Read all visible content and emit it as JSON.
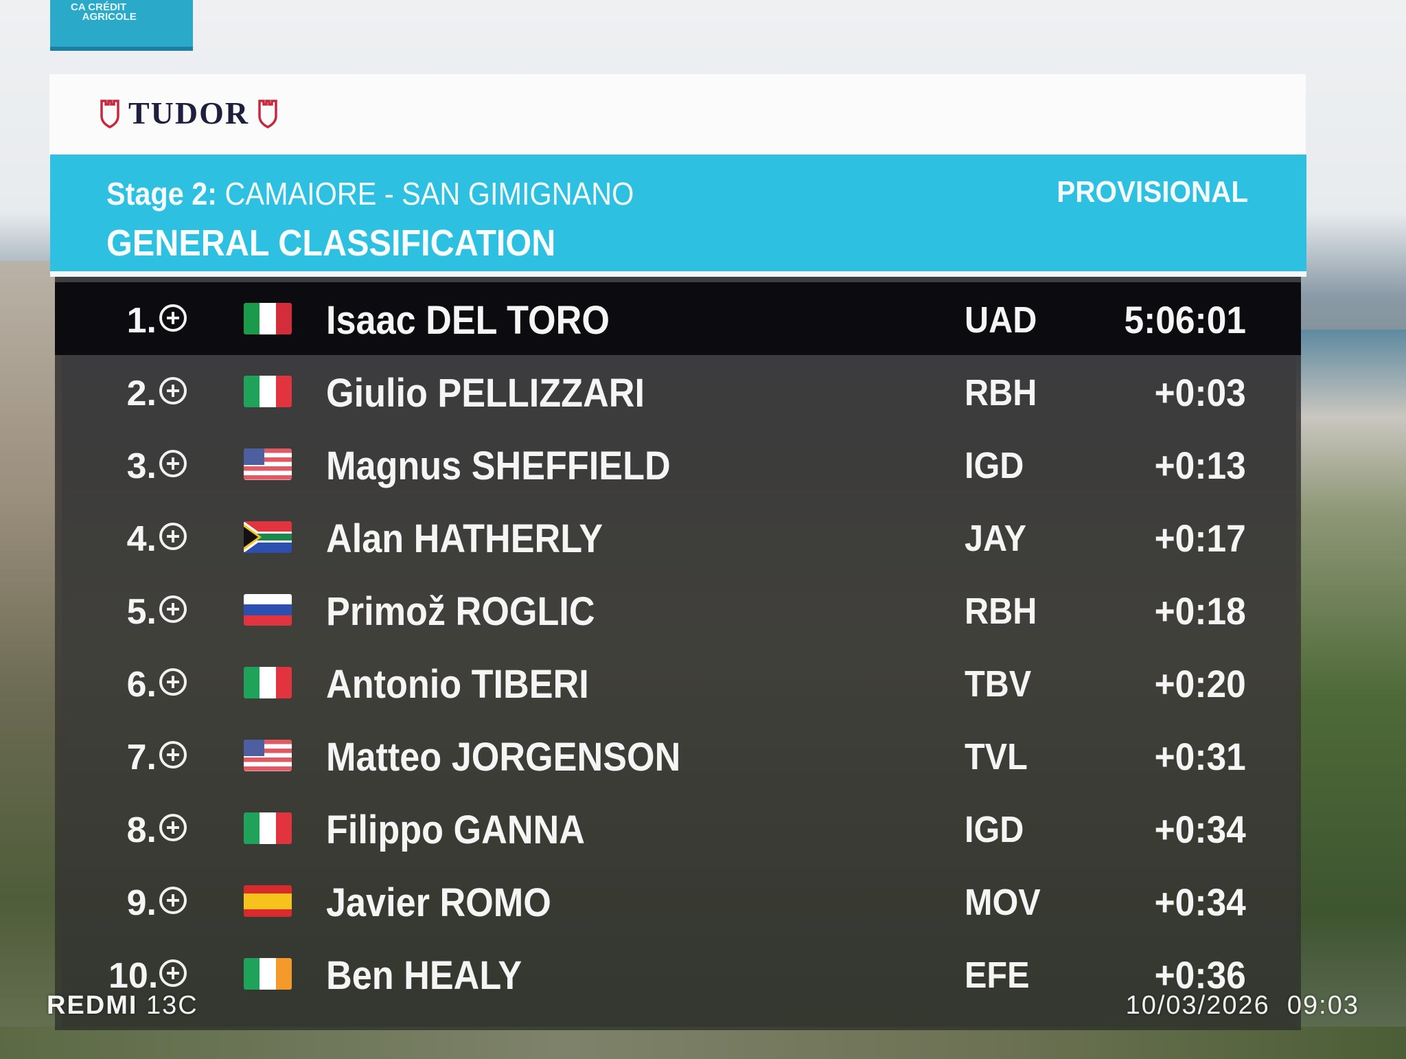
{
  "sponsor": {
    "brand": "CRÉDIT AGRICOLE"
  },
  "timing_sponsor": {
    "brand": "TUDOR"
  },
  "header": {
    "stage_prefix": "Stage 2:",
    "stage_route": "CAMAIORE - SAN GIMIGNANO",
    "classification": "GENERAL CLASSIFICATION",
    "status": "PROVISIONAL"
  },
  "colors": {
    "header": "#2ec0e0",
    "leader_row": "#0c0b10",
    "tudor_red": "#c8283c"
  },
  "standings": [
    {
      "rank": "1.",
      "flag": "mexico-flag",
      "name": "Isaac DEL TORO",
      "team": "UAD",
      "time": "5:06:01"
    },
    {
      "rank": "2.",
      "flag": "italy-flag",
      "name": "Giulio PELLIZZARI",
      "team": "RBH",
      "time": "+0:03"
    },
    {
      "rank": "3.",
      "flag": "usa-flag",
      "name": "Magnus SHEFFIELD",
      "team": "IGD",
      "time": "+0:13"
    },
    {
      "rank": "4.",
      "flag": "south-africa-flag",
      "name": "Alan HATHERLY",
      "team": "JAY",
      "time": "+0:17"
    },
    {
      "rank": "5.",
      "flag": "slovenia-flag",
      "name": "Primož ROGLIC",
      "team": "RBH",
      "time": "+0:18"
    },
    {
      "rank": "6.",
      "flag": "italy-flag",
      "name": "Antonio TIBERI",
      "team": "TBV",
      "time": "+0:20"
    },
    {
      "rank": "7.",
      "flag": "usa-flag",
      "name": "Matteo JORGENSON",
      "team": "TVL",
      "time": "+0:31"
    },
    {
      "rank": "8.",
      "flag": "italy-flag",
      "name": "Filippo GANNA",
      "team": "IGD",
      "time": "+0:34"
    },
    {
      "rank": "9.",
      "flag": "spain-flag",
      "name": "Javier ROMO",
      "team": "MOV",
      "time": "+0:34"
    },
    {
      "rank": "10.",
      "flag": "ireland-flag",
      "name": "Ben HEALY",
      "team": "EFE",
      "time": "+0:36"
    }
  ],
  "watermark": {
    "device_bold": "REDMI",
    "device_model": "13C",
    "datetime": "10/03/2026  09:03"
  }
}
